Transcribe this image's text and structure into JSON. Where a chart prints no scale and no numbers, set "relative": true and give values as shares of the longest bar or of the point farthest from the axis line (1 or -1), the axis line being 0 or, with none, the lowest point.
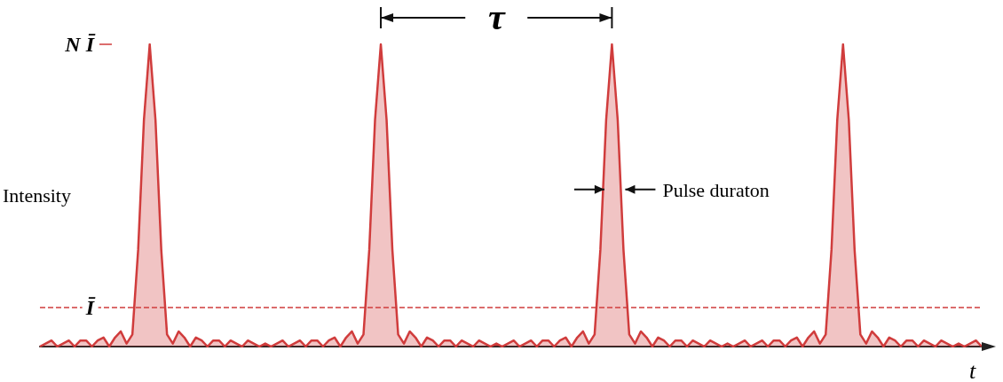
{
  "chart_data": {
    "type": "area",
    "xlabel": "t",
    "ylabel": "Intensity",
    "color": "#d03c3c",
    "grid": false,
    "relative": true,
    "annotations": [
      "τ",
      "Pulse duraton",
      "N Ī"
    ],
    "ref_lines": [
      {
        "axis": "y",
        "value": 0.13,
        "label": "Ī",
        "color": "#d03c3c",
        "line_style": "dashed"
      }
    ],
    "categories": [
      null,
      null,
      null,
      null,
      null,
      null,
      null,
      null,
      null,
      null,
      null,
      null,
      null,
      null,
      null,
      null,
      null,
      null,
      null,
      null,
      null,
      null,
      null,
      null,
      null,
      null,
      null,
      null,
      null,
      null,
      null,
      null,
      null,
      null,
      null,
      null,
      null,
      null,
      null,
      null,
      null,
      null,
      null,
      null,
      null,
      null,
      null,
      null,
      null,
      null,
      null,
      null,
      null,
      null,
      null,
      null,
      null,
      null,
      null,
      null,
      null,
      null,
      null,
      null,
      null,
      null,
      null,
      null,
      null,
      null,
      null,
      null,
      null,
      null,
      null,
      null,
      null,
      null,
      null,
      null,
      null,
      null,
      null,
      null,
      null,
      null,
      null,
      null,
      null,
      null,
      null,
      null,
      null,
      null,
      null,
      null,
      null,
      null,
      null,
      null,
      null,
      null,
      null,
      null,
      null,
      null,
      null,
      null,
      null,
      null,
      null,
      null,
      null,
      null,
      null,
      null,
      null,
      null,
      null,
      null,
      null,
      null,
      null,
      null,
      null,
      null,
      null,
      null,
      null,
      null,
      null,
      null,
      null,
      null,
      null,
      null,
      null,
      null,
      null,
      null,
      null,
      null,
      null,
      null,
      null,
      null,
      null,
      null,
      null,
      null,
      null,
      null,
      null,
      null,
      null,
      null,
      null,
      null,
      null,
      null,
      null,
      null,
      null,
      null
    ],
    "values": [
      0,
      0.01,
      0.02,
      0,
      0.01,
      0.02,
      0,
      0.02,
      0.02,
      0,
      0.02,
      0.03,
      0,
      0.03,
      0.05,
      0.01,
      0.04,
      0.32,
      0.75,
      1,
      0.75,
      0.32,
      0.04,
      0.01,
      0.05,
      0.03,
      0,
      0.03,
      0.02,
      0,
      0.02,
      0.02,
      0,
      0.02,
      0.01,
      0,
      0.02,
      0.01,
      0,
      0.01,
      0,
      0.01,
      0.02,
      0,
      0.01,
      0.02,
      0,
      0.02,
      0.02,
      0,
      0.02,
      0.03,
      0,
      0.03,
      0.05,
      0.01,
      0.04,
      0.32,
      0.75,
      1,
      0.75,
      0.32,
      0.04,
      0.01,
      0.05,
      0.03,
      0,
      0.03,
      0.02,
      0,
      0.02,
      0.02,
      0,
      0.02,
      0.01,
      0,
      0.02,
      0.01,
      0,
      0.01,
      0,
      0.01,
      0.02,
      0,
      0.01,
      0.02,
      0,
      0.02,
      0.02,
      0,
      0.02,
      0.03,
      0,
      0.03,
      0.05,
      0.01,
      0.04,
      0.32,
      0.75,
      1,
      0.75,
      0.32,
      0.04,
      0.01,
      0.05,
      0.03,
      0,
      0.03,
      0.02,
      0,
      0.02,
      0.02,
      0,
      0.02,
      0.01,
      0,
      0.02,
      0.01,
      0,
      0.01,
      0,
      0.01,
      0.02,
      0,
      0.01,
      0.02,
      0,
      0.02,
      0.02,
      0,
      0.02,
      0.03,
      0,
      0.03,
      0.05,
      0.01,
      0.04,
      0.32,
      0.75,
      1,
      0.75,
      0.32,
      0.04,
      0.01,
      0.05,
      0.03,
      0,
      0.03,
      0.02,
      0,
      0.02,
      0.02,
      0,
      0.02,
      0.01,
      0,
      0.02,
      0.01,
      0,
      0.01,
      0,
      0.01,
      0.02,
      0
    ]
  }
}
